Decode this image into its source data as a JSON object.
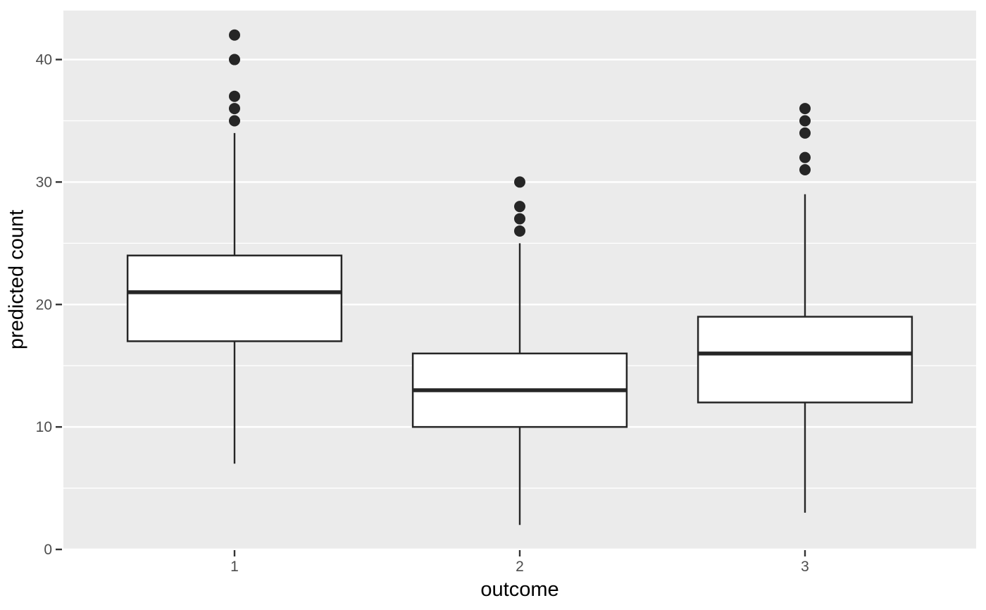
{
  "chart_data": {
    "type": "boxplot",
    "title": "",
    "xlabel": "outcome",
    "ylabel": "predicted count",
    "categories": [
      "1",
      "2",
      "3"
    ],
    "y_axis": {
      "range": [
        0,
        44
      ],
      "major_ticks": [
        0,
        10,
        20,
        30,
        40
      ],
      "tick_labels": [
        "0",
        "10",
        "20",
        "30",
        "40"
      ],
      "minor_ticks": [
        5,
        15,
        25,
        35
      ]
    },
    "series": [
      {
        "category": "1",
        "lower_whisker": 7,
        "q1": 17,
        "median": 21,
        "q3": 24,
        "upper_whisker": 34,
        "outliers": [
          35,
          36,
          37,
          40,
          42
        ]
      },
      {
        "category": "2",
        "lower_whisker": 2,
        "q1": 10,
        "median": 13,
        "q3": 16,
        "upper_whisker": 25,
        "outliers": [
          26,
          27,
          28,
          30
        ]
      },
      {
        "category": "3",
        "lower_whisker": 3,
        "q1": 12,
        "median": 16,
        "q3": 19,
        "upper_whisker": 29,
        "outliers": [
          31,
          32,
          34,
          35,
          36
        ]
      }
    ],
    "legend": "none",
    "grid": "horizontal major and minor white gridlines on gray panel",
    "colors": {
      "figure_background": "#FFFFFF",
      "panel_background": "#EBEBEB",
      "gridline": "#FFFFFF",
      "box_fill": "#FFFFFF",
      "box_stroke": "#262626",
      "outlier_point": "#262626",
      "tick_mark": "#333333",
      "tick_label_text": "#4D4D4D",
      "axis_title_text": "#000000"
    }
  }
}
